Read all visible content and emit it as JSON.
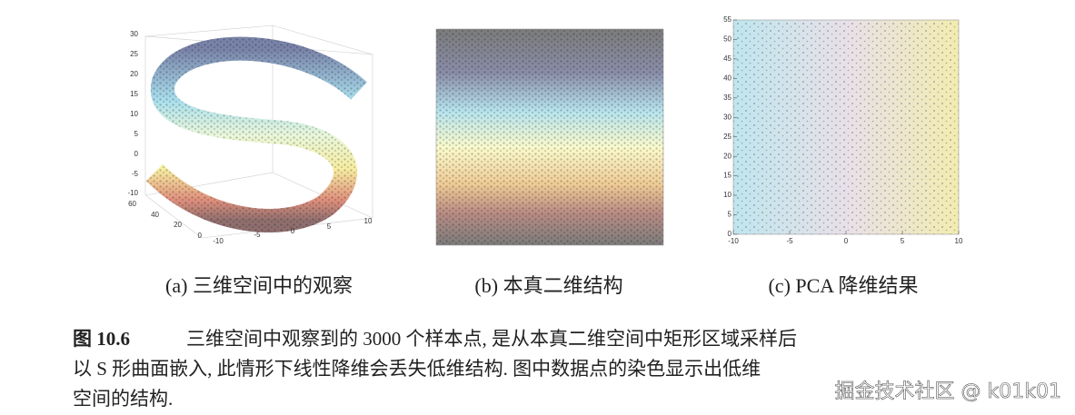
{
  "figure": {
    "panels": [
      {
        "caption": "(a) 三维空间中的观察",
        "z_ticks": [
          "30",
          "25",
          "20",
          "15",
          "10",
          "5",
          "0",
          "-5",
          "-10"
        ],
        "depth_ticks": [
          "60",
          "40",
          "20",
          "0"
        ],
        "x_ticks": [
          "-10",
          "-5",
          "0",
          "5",
          "10"
        ]
      },
      {
        "caption": "(b) 本真二维结构"
      },
      {
        "caption": "(c) PCA 降维结果",
        "xlim": [
          -10,
          10
        ],
        "ylim": [
          0,
          55
        ],
        "xticks": [
          -10,
          -5,
          0,
          5,
          10
        ],
        "yticks": [
          0,
          5,
          10,
          15,
          20,
          25,
          30,
          35,
          40,
          45,
          50,
          55
        ]
      }
    ],
    "label": "图 10.6",
    "caption_lines": [
      "三维空间中观察到的 3000 个样本点, 是从本真二维空间中矩形区域采样后",
      "以 S 形曲面嵌入, 此情形下线性降维会丢失低维结构. 图中数据点的染色显示出低维",
      "空间的结构."
    ],
    "watermark": "掘金技术社区 @ k01k01"
  }
}
